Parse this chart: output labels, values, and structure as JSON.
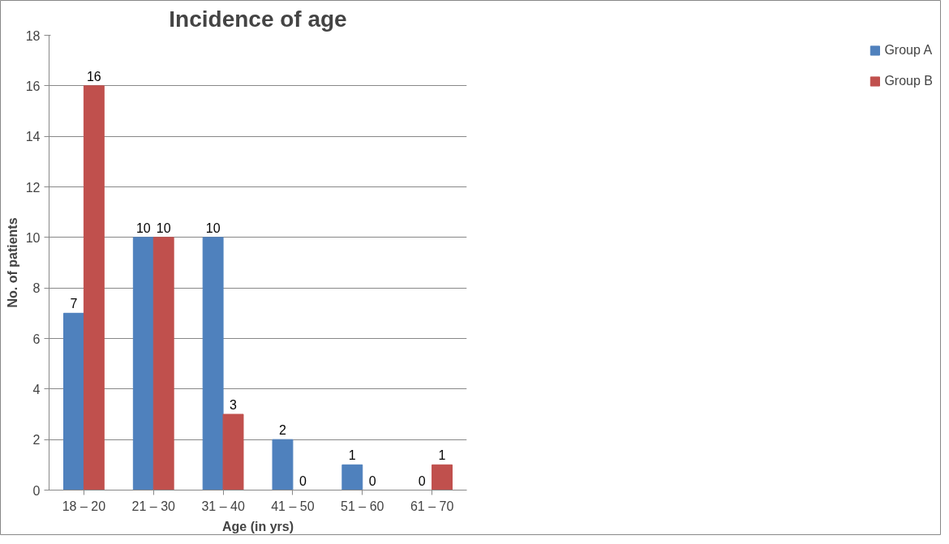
{
  "chart_data": {
    "type": "bar",
    "title": "Incidence of age",
    "xlabel": "Age (in yrs)",
    "ylabel": "No. of patients",
    "categories": [
      "18 – 20",
      "21 – 30",
      "31 – 40",
      "41 – 50",
      "51 – 60",
      "61 – 70"
    ],
    "series": [
      {
        "name": "Group A",
        "color": "#4f81bd",
        "values": [
          7,
          10,
          10,
          2,
          1,
          0
        ]
      },
      {
        "name": "Group B",
        "color": "#c0504d",
        "values": [
          16,
          10,
          3,
          0,
          0,
          1
        ]
      }
    ],
    "ylim": [
      0,
      18
    ],
    "yticks": [
      0,
      2,
      4,
      6,
      8,
      10,
      12,
      14,
      16,
      18
    ],
    "grid": "y",
    "legend": "right",
    "data_labels": true
  }
}
